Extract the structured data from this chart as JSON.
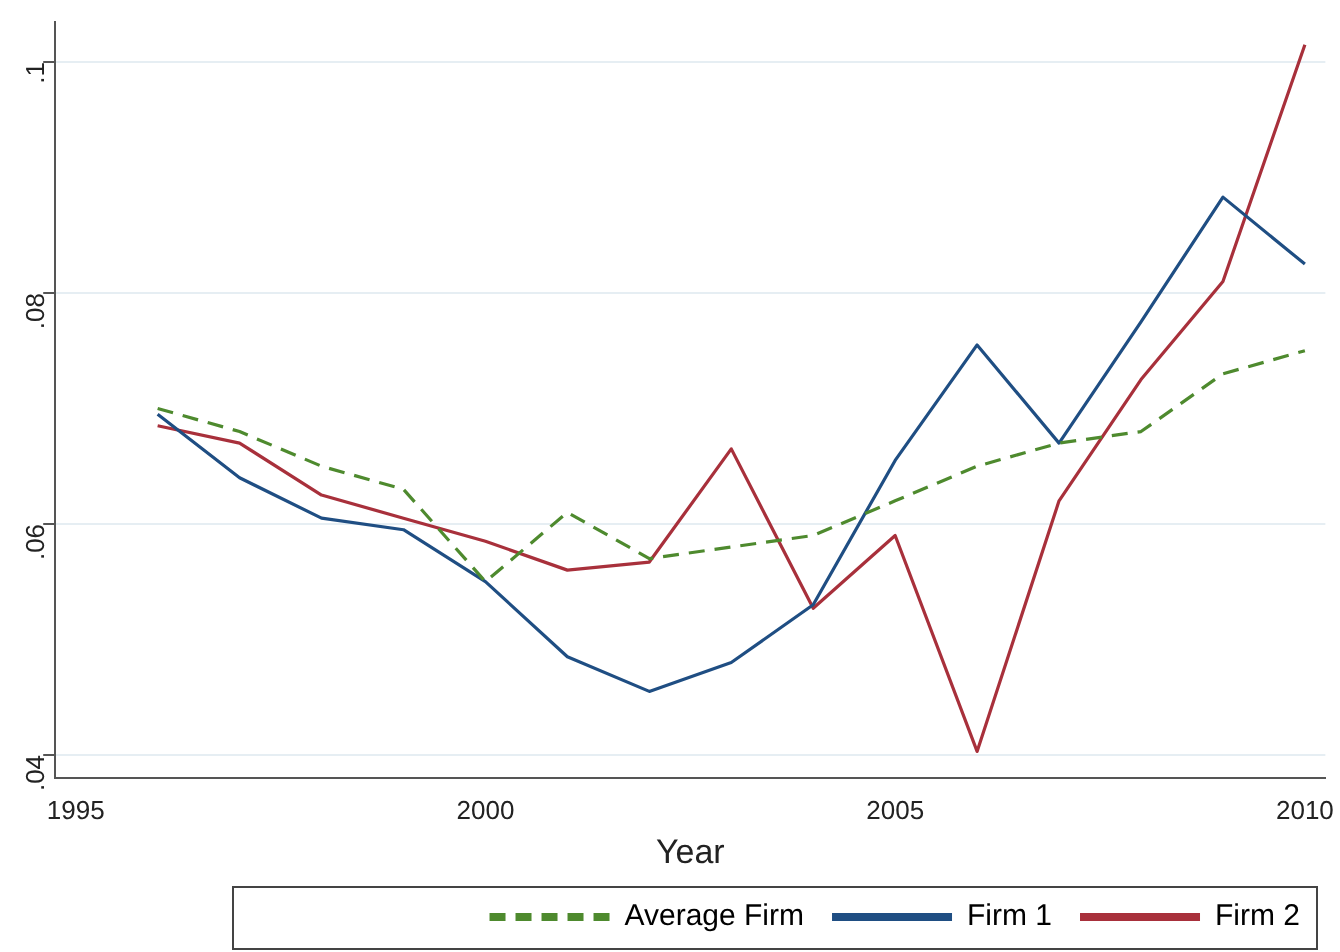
{
  "chart_data": {
    "type": "line",
    "xlabel": "Year",
    "x": [
      1996,
      1997,
      1998,
      1999,
      2000,
      2001,
      2002,
      2003,
      2004,
      2005,
      2006,
      2007,
      2008,
      2009,
      2010
    ],
    "series": [
      {
        "name": "Average Firm",
        "color": "#4e8a2e",
        "line_style": "dashed",
        "values": [
          0.07,
          0.068,
          0.065,
          0.063,
          0.055,
          0.061,
          0.057,
          0.058,
          0.059,
          0.062,
          0.065,
          0.067,
          0.068,
          0.073,
          0.075
        ]
      },
      {
        "name": "Firm 1",
        "color": "#1f4e83",
        "line_style": "solid",
        "values": [
          0.0695,
          0.064,
          0.0605,
          0.0595,
          0.055,
          0.0485,
          0.0455,
          0.048,
          0.053,
          0.0655,
          0.0755,
          0.067,
          0.0775,
          0.0883,
          0.0825
        ]
      },
      {
        "name": "Firm 2",
        "color": "#a8303b",
        "line_style": "solid",
        "values": [
          0.0685,
          0.067,
          0.0625,
          0.0605,
          0.0585,
          0.056,
          0.0567,
          0.0665,
          0.0527,
          0.059,
          0.0403,
          0.062,
          0.0725,
          0.081,
          0.1015
        ]
      }
    ],
    "xlim": [
      1994.75,
      2010.25
    ],
    "xticks": [
      1995,
      2000,
      2005,
      2010
    ],
    "ylim": [
      0.038,
      0.1035
    ],
    "yticks": [
      {
        "value": 0.04,
        "label": ".04"
      },
      {
        "value": 0.06,
        "label": ".06"
      },
      {
        "value": 0.08,
        "label": ".08"
      },
      {
        "value": 0.1,
        "label": ".1"
      }
    ],
    "grid": "y",
    "legend": "bottom",
    "marker": "none"
  }
}
